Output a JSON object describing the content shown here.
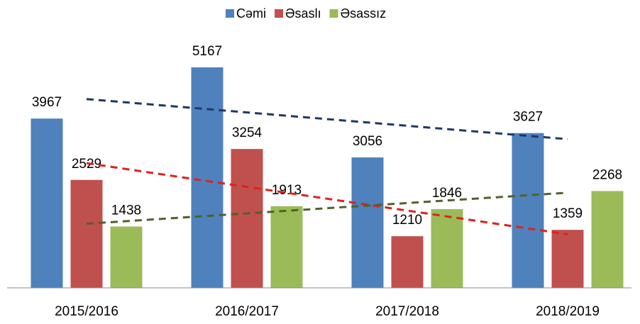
{
  "chart_data": {
    "type": "bar",
    "categories": [
      "2015/2016",
      "2016/2017",
      "2017/2018",
      "2018/2019"
    ],
    "series": [
      {
        "name": "Cəmi",
        "color": "#4f81bd",
        "trend_color": "#1f3864",
        "values": [
          3967,
          5167,
          3056,
          3627
        ]
      },
      {
        "name": "Əsaslı",
        "color": "#c0504d",
        "trend_color": "#e0201c",
        "values": [
          2529,
          3254,
          1210,
          1359
        ]
      },
      {
        "name": "Əsassız",
        "color": "#9bbb59",
        "trend_color": "#4f6228",
        "values": [
          1438,
          1913,
          1846,
          2268
        ]
      }
    ],
    "trendlines": true,
    "legend": "top"
  }
}
